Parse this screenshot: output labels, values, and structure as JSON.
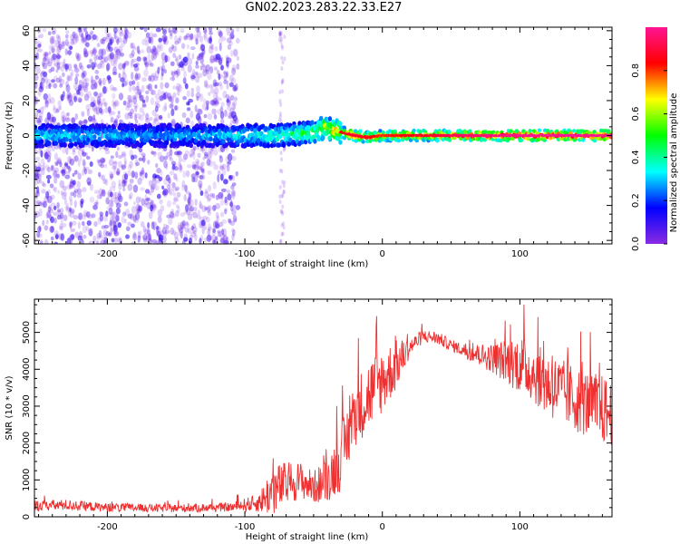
{
  "figure_title": "GN02.2023.283.22.33.E27",
  "chart_data": [
    {
      "type": "heatmap",
      "title": "",
      "xlabel": "Height of straight line (km)",
      "ylabel": "Frequency (Hz)",
      "xlim": [
        -253,
        167
      ],
      "ylim": [
        -62,
        62
      ],
      "xticks": [
        -200,
        -100,
        0,
        100
      ],
      "xtick_labels": [
        "-200",
        "-100",
        "0",
        "100"
      ],
      "yticks": [
        -60,
        -40,
        -20,
        0,
        20,
        40,
        60
      ],
      "ytick_labels": [
        "-60",
        "-40",
        "-20",
        "0",
        "20",
        "40",
        "60"
      ],
      "colorbar": {
        "label": "Normalized spectral amplitude",
        "range": [
          0,
          1
        ],
        "ticks": [
          0.0,
          0.2,
          0.4,
          0.6,
          0.8
        ],
        "tick_labels": [
          "0.0",
          "0.2",
          "0.4",
          "0.6",
          "0.8"
        ],
        "colormap": "gist_rainbow_r",
        "colors": [
          "#8a2be2",
          "#0000ff",
          "#00ffff",
          "#00ff00",
          "#ffff00",
          "#ff0000",
          "#ff1493"
        ]
      },
      "ridge": {
        "x": [
          -253,
          -220,
          -180,
          -140,
          -110,
          -90,
          -75,
          -60,
          -48,
          -42,
          -36,
          -30,
          -20,
          -10,
          0,
          20,
          60,
          100,
          167
        ],
        "freq": [
          0,
          0,
          0,
          0,
          0,
          0,
          0,
          1,
          2,
          5,
          3,
          2,
          0,
          -1,
          0,
          0,
          0,
          0,
          0
        ],
        "amplitude": [
          0.35,
          0.35,
          0.3,
          0.3,
          0.35,
          0.4,
          0.45,
          0.5,
          0.55,
          0.7,
          0.75,
          0.8,
          0.85,
          0.8,
          0.75,
          0.8,
          0.9,
          0.95,
          0.95
        ]
      },
      "noise_region": [
        -253,
        -105
      ],
      "grid": false
    },
    {
      "type": "line",
      "title": "",
      "xlabel": "Height of straight line (km)",
      "ylabel": "SNR (10 * v/v)",
      "xlim": [
        -253,
        167
      ],
      "ylim": [
        0,
        5900
      ],
      "xticks": [
        -200,
        -100,
        0,
        100
      ],
      "xtick_labels": [
        "-200",
        "-100",
        "0",
        "100"
      ],
      "yticks": [
        0,
        1000,
        2000,
        3000,
        4000,
        5000
      ],
      "ytick_labels": [
        "0",
        "1000",
        "2000",
        "3000",
        "4000",
        "5000"
      ],
      "color": "#ef3030",
      "series_envelope": {
        "x": [
          -253,
          -230,
          -200,
          -150,
          -110,
          -90,
          -80,
          -70,
          -60,
          -50,
          -40,
          -30,
          -20,
          -10,
          0,
          10,
          20,
          30,
          40,
          50,
          60,
          80,
          100,
          110,
          120,
          140,
          160,
          167
        ],
        "mean": [
          300,
          320,
          250,
          230,
          260,
          380,
          700,
          900,
          1000,
          800,
          1000,
          1600,
          2800,
          3300,
          3700,
          4100,
          4600,
          4900,
          4850,
          4650,
          4500,
          4300,
          4150,
          3900,
          3600,
          3200,
          2900,
          2800
        ],
        "spread": [
          150,
          150,
          120,
          110,
          120,
          250,
          700,
          600,
          500,
          450,
          600,
          900,
          900,
          1000,
          900,
          700,
          250,
          180,
          180,
          150,
          200,
          400,
          800,
          800,
          900,
          900,
          950,
          900
        ]
      },
      "grid": false
    }
  ]
}
